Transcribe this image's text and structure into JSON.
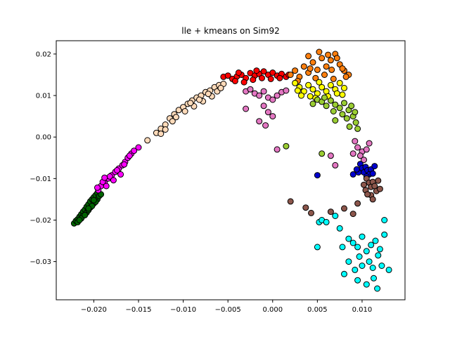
{
  "chart_data": {
    "type": "scatter",
    "title": "lle + kmeans on Sim92",
    "xlabel": "",
    "ylabel": "",
    "xlim": [
      -0.0242,
      0.0148
    ],
    "ylim": [
      -0.0392,
      0.0232
    ],
    "x_ticks": [
      -0.02,
      -0.015,
      -0.01,
      -0.005,
      0.0,
      0.005,
      0.01
    ],
    "x_tick_labels": [
      "−0.020",
      "−0.015",
      "−0.010",
      "−0.005",
      "0.000",
      "0.005",
      "0.010"
    ],
    "y_ticks": [
      0.02,
      0.01,
      0.0,
      -0.01,
      -0.02,
      -0.03
    ],
    "y_tick_labels": [
      "0.02",
      "0.01",
      "0.00",
      "−0.01",
      "−0.02",
      "−0.03"
    ],
    "grid": false,
    "marker_edge_color": "#000000",
    "series": [
      {
        "color": "#006400",
        "points": [
          [
            -0.0222,
            -0.0208
          ],
          [
            -0.022,
            -0.0202
          ],
          [
            -0.0218,
            -0.0198
          ],
          [
            -0.0216,
            -0.0192
          ],
          [
            -0.0214,
            -0.0186
          ],
          [
            -0.0212,
            -0.018
          ],
          [
            -0.021,
            -0.0175
          ],
          [
            -0.0208,
            -0.0168
          ],
          [
            -0.0206,
            -0.0162
          ],
          [
            -0.0204,
            -0.0155
          ],
          [
            -0.0202,
            -0.015
          ],
          [
            -0.02,
            -0.0145
          ],
          [
            -0.0198,
            -0.014
          ],
          [
            -0.0196,
            -0.0135
          ],
          [
            -0.0212,
            -0.019
          ],
          [
            -0.0208,
            -0.0182
          ],
          [
            -0.0204,
            -0.017
          ],
          [
            -0.02,
            -0.016
          ],
          [
            -0.0196,
            -0.015
          ],
          [
            -0.0218,
            -0.0205
          ],
          [
            -0.0214,
            -0.0196
          ],
          [
            -0.021,
            -0.0188
          ],
          [
            -0.0206,
            -0.0176
          ],
          [
            -0.0202,
            -0.0166
          ],
          [
            -0.0198,
            -0.0156
          ],
          [
            -0.0194,
            -0.0142
          ],
          [
            -0.0192,
            -0.0138
          ],
          [
            -0.0216,
            -0.02
          ],
          [
            -0.0206,
            -0.0172
          ],
          [
            -0.02,
            -0.0152
          ]
        ]
      },
      {
        "color": "#ff00ff",
        "points": [
          [
            -0.0195,
            -0.0128
          ],
          [
            -0.0192,
            -0.0118
          ],
          [
            -0.0188,
            -0.011
          ],
          [
            -0.0184,
            -0.01
          ],
          [
            -0.018,
            -0.0092
          ],
          [
            -0.0176,
            -0.0084
          ],
          [
            -0.0172,
            -0.0076
          ],
          [
            -0.0168,
            -0.0068
          ],
          [
            -0.0165,
            -0.006
          ],
          [
            -0.0162,
            -0.005
          ],
          [
            -0.0158,
            -0.004
          ],
          [
            -0.0155,
            -0.0033
          ],
          [
            -0.019,
            -0.0108
          ],
          [
            -0.0186,
            -0.0118
          ],
          [
            -0.0182,
            -0.0095
          ],
          [
            -0.0178,
            -0.0104
          ],
          [
            -0.0174,
            -0.008
          ],
          [
            -0.017,
            -0.009
          ],
          [
            -0.0196,
            -0.0122
          ],
          [
            -0.0188,
            -0.0098
          ],
          [
            -0.0166,
            -0.0066
          ],
          [
            -0.016,
            -0.0045
          ],
          [
            -0.015,
            -0.0025
          ]
        ]
      },
      {
        "color": "#ffdab9",
        "points": [
          [
            -0.014,
            -0.0008
          ],
          [
            -0.013,
            0.001
          ],
          [
            -0.0125,
            0.002
          ],
          [
            -0.012,
            0.003
          ],
          [
            -0.0115,
            0.0045
          ],
          [
            -0.011,
            0.0055
          ],
          [
            -0.0105,
            0.0065
          ],
          [
            -0.01,
            0.0072
          ],
          [
            -0.0095,
            0.008
          ],
          [
            -0.009,
            0.0088
          ],
          [
            -0.0085,
            0.0095
          ],
          [
            -0.008,
            0.01
          ],
          [
            -0.0075,
            0.0108
          ],
          [
            -0.007,
            0.0112
          ],
          [
            -0.0065,
            0.012
          ],
          [
            -0.006,
            0.0125
          ],
          [
            -0.0055,
            0.0128
          ],
          [
            -0.0108,
            0.0048
          ],
          [
            -0.0098,
            0.0062
          ],
          [
            -0.0088,
            0.0074
          ],
          [
            -0.0078,
            0.0086
          ],
          [
            -0.0068,
            0.0098
          ],
          [
            -0.0062,
            0.011
          ],
          [
            -0.012,
            0.0018
          ],
          [
            -0.0112,
            0.0038
          ],
          [
            -0.0092,
            0.0082
          ],
          [
            -0.0082,
            0.009
          ],
          [
            -0.0072,
            0.0104
          ],
          [
            -0.0058,
            0.0118
          ],
          [
            -0.0125,
            0.0008
          ]
        ]
      },
      {
        "color": "#ff0000",
        "points": [
          [
            -0.0055,
            0.0145
          ],
          [
            -0.005,
            0.0148
          ],
          [
            -0.0045,
            0.014
          ],
          [
            -0.004,
            0.0146
          ],
          [
            -0.0035,
            0.015
          ],
          [
            -0.003,
            0.0142
          ],
          [
            -0.0025,
            0.0154
          ],
          [
            -0.002,
            0.0148
          ],
          [
            -0.0015,
            0.0152
          ],
          [
            -0.001,
            0.0158
          ],
          [
            -0.0005,
            0.015
          ],
          [
            0.0,
            0.0155
          ],
          [
            0.0005,
            0.0148
          ],
          [
            0.001,
            0.0152
          ],
          [
            0.0015,
            0.0145
          ],
          [
            -0.0042,
            0.0135
          ],
          [
            -0.0032,
            0.0132
          ],
          [
            -0.0022,
            0.0138
          ],
          [
            -0.0012,
            0.0142
          ],
          [
            -0.0002,
            0.014
          ],
          [
            0.0008,
            0.0142
          ],
          [
            0.0018,
            0.015
          ],
          [
            -0.0038,
            0.0155
          ],
          [
            -0.0018,
            0.016
          ]
        ]
      },
      {
        "color": "#ff7f0e",
        "points": [
          [
            0.002,
            0.015
          ],
          [
            0.0025,
            0.016
          ],
          [
            0.003,
            0.0145
          ],
          [
            0.0035,
            0.017
          ],
          [
            0.004,
            0.0155
          ],
          [
            0.0045,
            0.018
          ],
          [
            0.005,
            0.0162
          ],
          [
            0.0055,
            0.019
          ],
          [
            0.006,
            0.017
          ],
          [
            0.0065,
            0.0185
          ],
          [
            0.007,
            0.02
          ],
          [
            0.0075,
            0.0175
          ],
          [
            0.008,
            0.016
          ],
          [
            0.0085,
            0.015
          ],
          [
            0.004,
            0.0195
          ],
          [
            0.0052,
            0.0205
          ],
          [
            0.0062,
            0.0198
          ],
          [
            0.0072,
            0.019
          ],
          [
            0.0078,
            0.0165
          ],
          [
            0.0048,
            0.0142
          ],
          [
            0.0058,
            0.015
          ],
          [
            0.0068,
            0.014
          ],
          [
            0.0082,
            0.0145
          ],
          [
            0.0028,
            0.0135
          ],
          [
            0.0042,
            0.0165
          ],
          [
            0.0066,
            0.0162
          ]
        ]
      },
      {
        "color": "#ffff00",
        "points": [
          [
            0.0025,
            0.013
          ],
          [
            0.003,
            0.012
          ],
          [
            0.0035,
            0.011
          ],
          [
            0.004,
            0.0125
          ],
          [
            0.0045,
            0.0115
          ],
          [
            0.005,
            0.0105
          ],
          [
            0.0055,
            0.012
          ],
          [
            0.006,
            0.011
          ],
          [
            0.0065,
            0.0125
          ],
          [
            0.007,
            0.0115
          ],
          [
            0.0075,
            0.013
          ],
          [
            0.008,
            0.0118
          ],
          [
            0.0032,
            0.01
          ],
          [
            0.0042,
            0.0098
          ],
          [
            0.0052,
            0.0132
          ],
          [
            0.0062,
            0.0098
          ],
          [
            0.0072,
            0.0105
          ],
          [
            0.0078,
            0.0102
          ],
          [
            0.0028,
            0.0112
          ],
          [
            0.0048,
            0.0094
          ]
        ]
      },
      {
        "color": "#9acd32",
        "points": [
          [
            0.0045,
            0.008
          ],
          [
            0.005,
            0.009
          ],
          [
            0.0055,
            0.0085
          ],
          [
            0.006,
            0.0075
          ],
          [
            0.0065,
            0.0088
          ],
          [
            0.007,
            0.0078
          ],
          [
            0.0075,
            0.007
          ],
          [
            0.008,
            0.0082
          ],
          [
            0.0085,
            0.0065
          ],
          [
            0.009,
            0.005
          ],
          [
            0.0093,
            0.0035
          ],
          [
            0.0083,
            0.0045
          ],
          [
            0.0078,
            0.0055
          ],
          [
            0.0068,
            0.0062
          ],
          [
            0.0058,
            0.0095
          ],
          [
            0.0088,
            0.0075
          ],
          [
            0.0095,
            0.002
          ],
          [
            0.0086,
            0.0025
          ],
          [
            0.007,
            0.004
          ],
          [
            0.0015,
            -0.0022
          ],
          [
            0.0055,
            -0.004
          ],
          [
            0.0092,
            0.006
          ]
        ]
      },
      {
        "color": "#e377c2",
        "points": [
          [
            -0.003,
            0.011
          ],
          [
            -0.0025,
            0.0115
          ],
          [
            -0.002,
            0.0105
          ],
          [
            -0.0015,
            0.01
          ],
          [
            -0.001,
            0.011
          ],
          [
            -0.0005,
            0.0095
          ],
          [
            0.0,
            0.009
          ],
          [
            0.0005,
            0.01
          ],
          [
            0.001,
            0.0108
          ],
          [
            0.0015,
            0.0112
          ],
          [
            -0.001,
            0.0075
          ],
          [
            -0.0005,
            0.006
          ],
          [
            0.0,
            0.005
          ],
          [
            -0.0015,
            0.0038
          ],
          [
            -0.003,
            0.0068
          ],
          [
            -0.0008,
            0.0028
          ],
          [
            0.0092,
            -0.001
          ],
          [
            0.0095,
            -0.0025
          ],
          [
            0.01,
            -0.0035
          ],
          [
            0.0098,
            -0.0045
          ],
          [
            0.0102,
            -0.0055
          ],
          [
            0.0105,
            -0.003
          ],
          [
            0.0108,
            -0.0015
          ],
          [
            0.009,
            -0.004
          ],
          [
            0.0065,
            -0.0045
          ],
          [
            0.007,
            -0.0068
          ],
          [
            0.0005,
            -0.003
          ]
        ]
      },
      {
        "color": "#0000cd",
        "points": [
          [
            0.0098,
            -0.0065
          ],
          [
            0.01,
            -0.0075
          ],
          [
            0.0102,
            -0.0085
          ],
          [
            0.0104,
            -0.0072
          ],
          [
            0.0106,
            -0.008
          ],
          [
            0.0108,
            -0.009
          ],
          [
            0.011,
            -0.0078
          ],
          [
            0.0112,
            -0.0088
          ],
          [
            0.0096,
            -0.0085
          ],
          [
            0.0114,
            -0.007
          ],
          [
            0.0094,
            -0.0078
          ],
          [
            0.0105,
            -0.0095
          ],
          [
            0.005,
            -0.0092
          ],
          [
            0.009,
            -0.009
          ]
        ]
      },
      {
        "color": "#8c564b",
        "points": [
          [
            0.0105,
            -0.01
          ],
          [
            0.0108,
            -0.011
          ],
          [
            0.011,
            -0.012
          ],
          [
            0.0112,
            -0.0108
          ],
          [
            0.0114,
            -0.0118
          ],
          [
            0.0116,
            -0.013
          ],
          [
            0.011,
            -0.014
          ],
          [
            0.0112,
            -0.015
          ],
          [
            0.0104,
            -0.0128
          ],
          [
            0.0106,
            -0.0138
          ],
          [
            0.0118,
            -0.0105
          ],
          [
            0.0102,
            -0.0115
          ],
          [
            0.002,
            -0.0155
          ],
          [
            0.0037,
            -0.017
          ],
          [
            0.0043,
            -0.0183
          ],
          [
            0.0065,
            -0.018
          ],
          [
            0.008,
            -0.0172
          ],
          [
            0.009,
            -0.0185
          ],
          [
            0.0095,
            -0.016
          ],
          [
            0.012,
            -0.0125
          ]
        ]
      },
      {
        "color": "#00ffff",
        "points": [
          [
            0.0052,
            -0.0205
          ],
          [
            0.0055,
            -0.02
          ],
          [
            0.006,
            -0.0205
          ],
          [
            0.007,
            -0.019
          ],
          [
            0.0075,
            -0.022
          ],
          [
            0.0085,
            -0.0245
          ],
          [
            0.009,
            -0.0255
          ],
          [
            0.0095,
            -0.0265
          ],
          [
            0.01,
            -0.024
          ],
          [
            0.0105,
            -0.0275
          ],
          [
            0.011,
            -0.026
          ],
          [
            0.0115,
            -0.025
          ],
          [
            0.012,
            -0.027
          ],
          [
            0.0125,
            -0.0235
          ],
          [
            0.0125,
            -0.02
          ],
          [
            0.0118,
            -0.0285
          ],
          [
            0.0108,
            -0.03
          ],
          [
            0.0112,
            -0.0315
          ],
          [
            0.01,
            -0.031
          ],
          [
            0.0092,
            -0.032
          ],
          [
            0.0095,
            -0.0345
          ],
          [
            0.0105,
            -0.0355
          ],
          [
            0.0117,
            -0.0365
          ],
          [
            0.013,
            -0.032
          ],
          [
            0.0122,
            -0.031
          ],
          [
            0.0085,
            -0.03
          ],
          [
            0.0078,
            -0.0265
          ],
          [
            0.008,
            -0.033
          ],
          [
            0.005,
            -0.0265
          ],
          [
            0.0097,
            -0.0288
          ],
          [
            0.0113,
            -0.034
          ]
        ]
      }
    ]
  }
}
